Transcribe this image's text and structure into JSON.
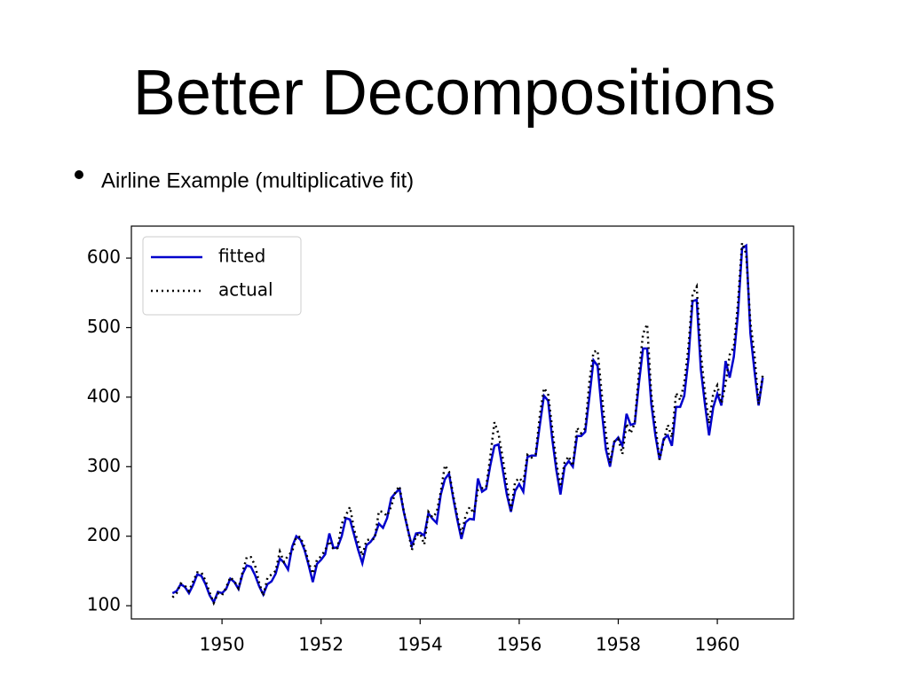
{
  "title": "Better Decompositions",
  "bullet": "Airline Example (multiplicative fit)",
  "chart_data": {
    "type": "line",
    "x": [
      1949,
      1949.083,
      1949.167,
      1949.25,
      1949.333,
      1949.417,
      1949.5,
      1949.583,
      1949.667,
      1949.75,
      1949.833,
      1949.917,
      1950,
      1950.083,
      1950.167,
      1950.25,
      1950.333,
      1950.417,
      1950.5,
      1950.583,
      1950.667,
      1950.75,
      1950.833,
      1950.917,
      1951,
      1951.083,
      1951.167,
      1951.25,
      1951.333,
      1951.417,
      1951.5,
      1951.583,
      1951.667,
      1951.75,
      1951.833,
      1951.917,
      1952,
      1952.083,
      1952.167,
      1952.25,
      1952.333,
      1952.417,
      1952.5,
      1952.583,
      1952.667,
      1952.75,
      1952.833,
      1952.917,
      1953,
      1953.083,
      1953.167,
      1953.25,
      1953.333,
      1953.417,
      1953.5,
      1953.583,
      1953.667,
      1953.75,
      1953.833,
      1953.917,
      1954,
      1954.083,
      1954.167,
      1954.25,
      1954.333,
      1954.417,
      1954.5,
      1954.583,
      1954.667,
      1954.75,
      1954.833,
      1954.917,
      1955,
      1955.083,
      1955.167,
      1955.25,
      1955.333,
      1955.417,
      1955.5,
      1955.583,
      1955.667,
      1955.75,
      1955.833,
      1955.917,
      1956,
      1956.083,
      1956.167,
      1956.25,
      1956.333,
      1956.417,
      1956.5,
      1956.583,
      1956.667,
      1956.75,
      1956.833,
      1956.917,
      1957,
      1957.083,
      1957.167,
      1957.25,
      1957.333,
      1957.417,
      1957.5,
      1957.583,
      1957.667,
      1957.75,
      1957.833,
      1957.917,
      1958,
      1958.083,
      1958.167,
      1958.25,
      1958.333,
      1958.417,
      1958.5,
      1958.583,
      1958.667,
      1958.75,
      1958.833,
      1958.917,
      1959,
      1959.083,
      1959.167,
      1959.25,
      1959.333,
      1959.417,
      1959.5,
      1959.583,
      1959.667,
      1959.75,
      1959.833,
      1959.917,
      1960,
      1960.083,
      1960.167,
      1960.25,
      1960.333,
      1960.417,
      1960.5,
      1960.583,
      1960.667,
      1960.75,
      1960.833,
      1960.917
    ],
    "series": [
      {
        "name": "fitted",
        "color": "#0000cc",
        "linestyle": "solid",
        "values": [
          118,
          121,
          131,
          127,
          118,
          130,
          145,
          143,
          131,
          115,
          105,
          120,
          118,
          124,
          139,
          134,
          124,
          146,
          158,
          156,
          144,
          128,
          116,
          131,
          135,
          146,
          168,
          162,
          152,
          185,
          200,
          195,
          180,
          158,
          134,
          160,
          166,
          174,
          204,
          183,
          184,
          200,
          226,
          224,
          202,
          180,
          161,
          187,
          192,
          200,
          218,
          212,
          226,
          255,
          262,
          268,
          236,
          210,
          186,
          204,
          205,
          201,
          233,
          225,
          219,
          260,
          282,
          290,
          255,
          224,
          196,
          220,
          225,
          224,
          283,
          264,
          268,
          302,
          330,
          332,
          296,
          260,
          235,
          265,
          275,
          264,
          314,
          316,
          316,
          360,
          402,
          395,
          340,
          295,
          260,
          300,
          308,
          300,
          344,
          344,
          350,
          400,
          453,
          445,
          380,
          325,
          300,
          335,
          342,
          330,
          376,
          360,
          362,
          420,
          470,
          470,
          390,
          345,
          310,
          340,
          345,
          330,
          386,
          386,
          402,
          455,
          538,
          540,
          440,
          390,
          345,
          385,
          405,
          388,
          452,
          428,
          458,
          520,
          614,
          618,
          492,
          438,
          388,
          428
        ]
      },
      {
        "name": "actual",
        "color": "#000000",
        "linestyle": "dotted",
        "values": [
          112,
          118,
          132,
          129,
          121,
          135,
          148,
          148,
          136,
          119,
          104,
          118,
          115,
          126,
          141,
          135,
          125,
          149,
          170,
          170,
          158,
          133,
          114,
          140,
          145,
          150,
          178,
          163,
          172,
          178,
          199,
          199,
          184,
          162,
          146,
          166,
          171,
          180,
          193,
          181,
          183,
          218,
          230,
          242,
          209,
          191,
          172,
          194,
          196,
          196,
          236,
          235,
          229,
          243,
          264,
          272,
          237,
          211,
          180,
          201,
          204,
          188,
          235,
          227,
          234,
          264,
          302,
          293,
          259,
          229,
          203,
          229,
          242,
          233,
          267,
          269,
          270,
          315,
          364,
          347,
          312,
          274,
          237,
          278,
          284,
          277,
          317,
          313,
          318,
          374,
          413,
          405,
          355,
          306,
          271,
          306,
          315,
          301,
          356,
          348,
          355,
          422,
          465,
          467,
          404,
          347,
          305,
          336,
          340,
          318,
          362,
          348,
          363,
          435,
          491,
          505,
          404,
          359,
          310,
          337,
          360,
          342,
          406,
          396,
          420,
          472,
          548,
          559,
          463,
          407,
          362,
          405,
          417,
          391,
          419,
          461,
          472,
          535,
          622,
          606,
          508,
          461,
          390,
          432
        ]
      }
    ],
    "xlim": [
      1948.17,
      1961.54
    ],
    "xticks": [
      1950,
      1952,
      1954,
      1956,
      1958,
      1960
    ],
    "ylim": [
      81,
      646
    ],
    "yticks": [
      100,
      200,
      300,
      400,
      500,
      600
    ],
    "legend": "upper left"
  }
}
